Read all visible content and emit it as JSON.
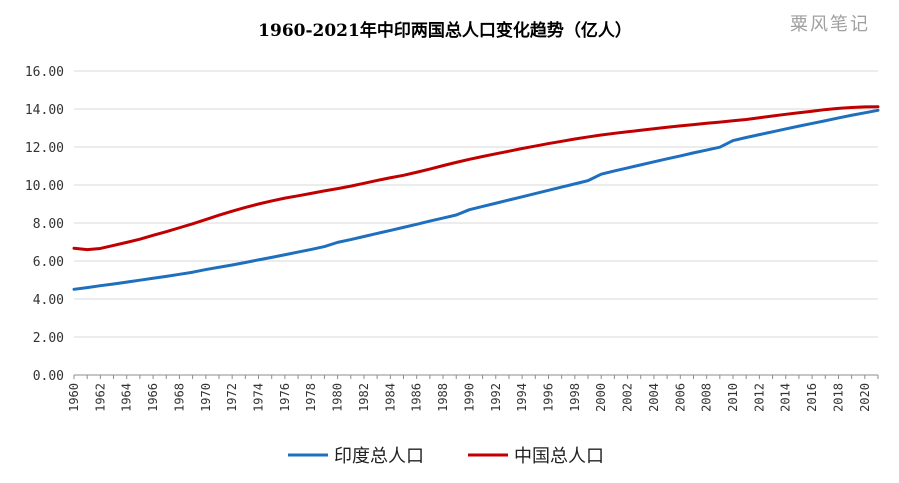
{
  "chart_data": {
    "type": "line",
    "title": "1960-2021年中印两国总人口变化趋势（亿人）",
    "xlabel": "",
    "ylabel": "",
    "ylim": [
      0,
      16
    ],
    "yticks": [
      "0.00",
      "2.00",
      "4.00",
      "6.00",
      "8.00",
      "10.00",
      "12.00",
      "14.00",
      "16.00"
    ],
    "x": [
      1960,
      1961,
      1962,
      1963,
      1964,
      1965,
      1966,
      1967,
      1968,
      1969,
      1970,
      1971,
      1972,
      1973,
      1974,
      1975,
      1976,
      1977,
      1978,
      1979,
      1980,
      1981,
      1982,
      1983,
      1984,
      1985,
      1986,
      1987,
      1988,
      1989,
      1990,
      1991,
      1992,
      1993,
      1994,
      1995,
      1996,
      1997,
      1998,
      1999,
      2000,
      2001,
      2002,
      2003,
      2004,
      2005,
      2006,
      2007,
      2008,
      2009,
      2010,
      2011,
      2012,
      2013,
      2014,
      2015,
      2016,
      2017,
      2018,
      2019,
      2020,
      2021
    ],
    "xticks": [
      "1960",
      "1962",
      "1964",
      "1966",
      "1968",
      "1970",
      "1972",
      "1974",
      "1976",
      "1978",
      "1980",
      "1982",
      "1984",
      "1986",
      "1988",
      "1990",
      "1992",
      "1994",
      "1996",
      "1998",
      "2000",
      "2002",
      "2004",
      "2006",
      "2008",
      "2010",
      "2012",
      "2014",
      "2016",
      "2018",
      "2020"
    ],
    "grid": "horizontal",
    "legend_position": "bottom",
    "series": [
      {
        "name": "印度总人口",
        "color": "#1f6fbf",
        "values": [
          4.51,
          4.6,
          4.7,
          4.79,
          4.89,
          4.99,
          5.09,
          5.19,
          5.3,
          5.41,
          5.55,
          5.67,
          5.79,
          5.92,
          6.06,
          6.19,
          6.33,
          6.47,
          6.61,
          6.76,
          6.98,
          7.13,
          7.29,
          7.45,
          7.61,
          7.77,
          7.93,
          8.1,
          8.26,
          8.42,
          8.7,
          8.87,
          9.04,
          9.21,
          9.38,
          9.55,
          9.72,
          9.89,
          10.06,
          10.23,
          10.57,
          10.74,
          10.9,
          11.06,
          11.22,
          11.38,
          11.53,
          11.69,
          11.84,
          11.99,
          12.34,
          12.5,
          12.65,
          12.8,
          12.95,
          13.1,
          13.24,
          13.38,
          13.53,
          13.67,
          13.8,
          13.93
        ]
      },
      {
        "name": "中国总人口",
        "color": "#c00000",
        "values": [
          6.67,
          6.6,
          6.66,
          6.82,
          6.98,
          7.15,
          7.35,
          7.54,
          7.75,
          7.96,
          8.18,
          8.41,
          8.62,
          8.82,
          9.0,
          9.16,
          9.31,
          9.43,
          9.56,
          9.69,
          9.81,
          9.94,
          10.09,
          10.24,
          10.38,
          10.51,
          10.67,
          10.84,
          11.02,
          11.19,
          11.35,
          11.5,
          11.64,
          11.78,
          11.92,
          12.05,
          12.18,
          12.3,
          12.42,
          12.53,
          12.63,
          12.72,
          12.8,
          12.88,
          12.96,
          13.04,
          13.11,
          13.18,
          13.25,
          13.31,
          13.38,
          13.45,
          13.54,
          13.63,
          13.72,
          13.8,
          13.88,
          13.97,
          14.03,
          14.08,
          14.11,
          14.12
        ]
      }
    ]
  },
  "watermark": "粟风笔记"
}
